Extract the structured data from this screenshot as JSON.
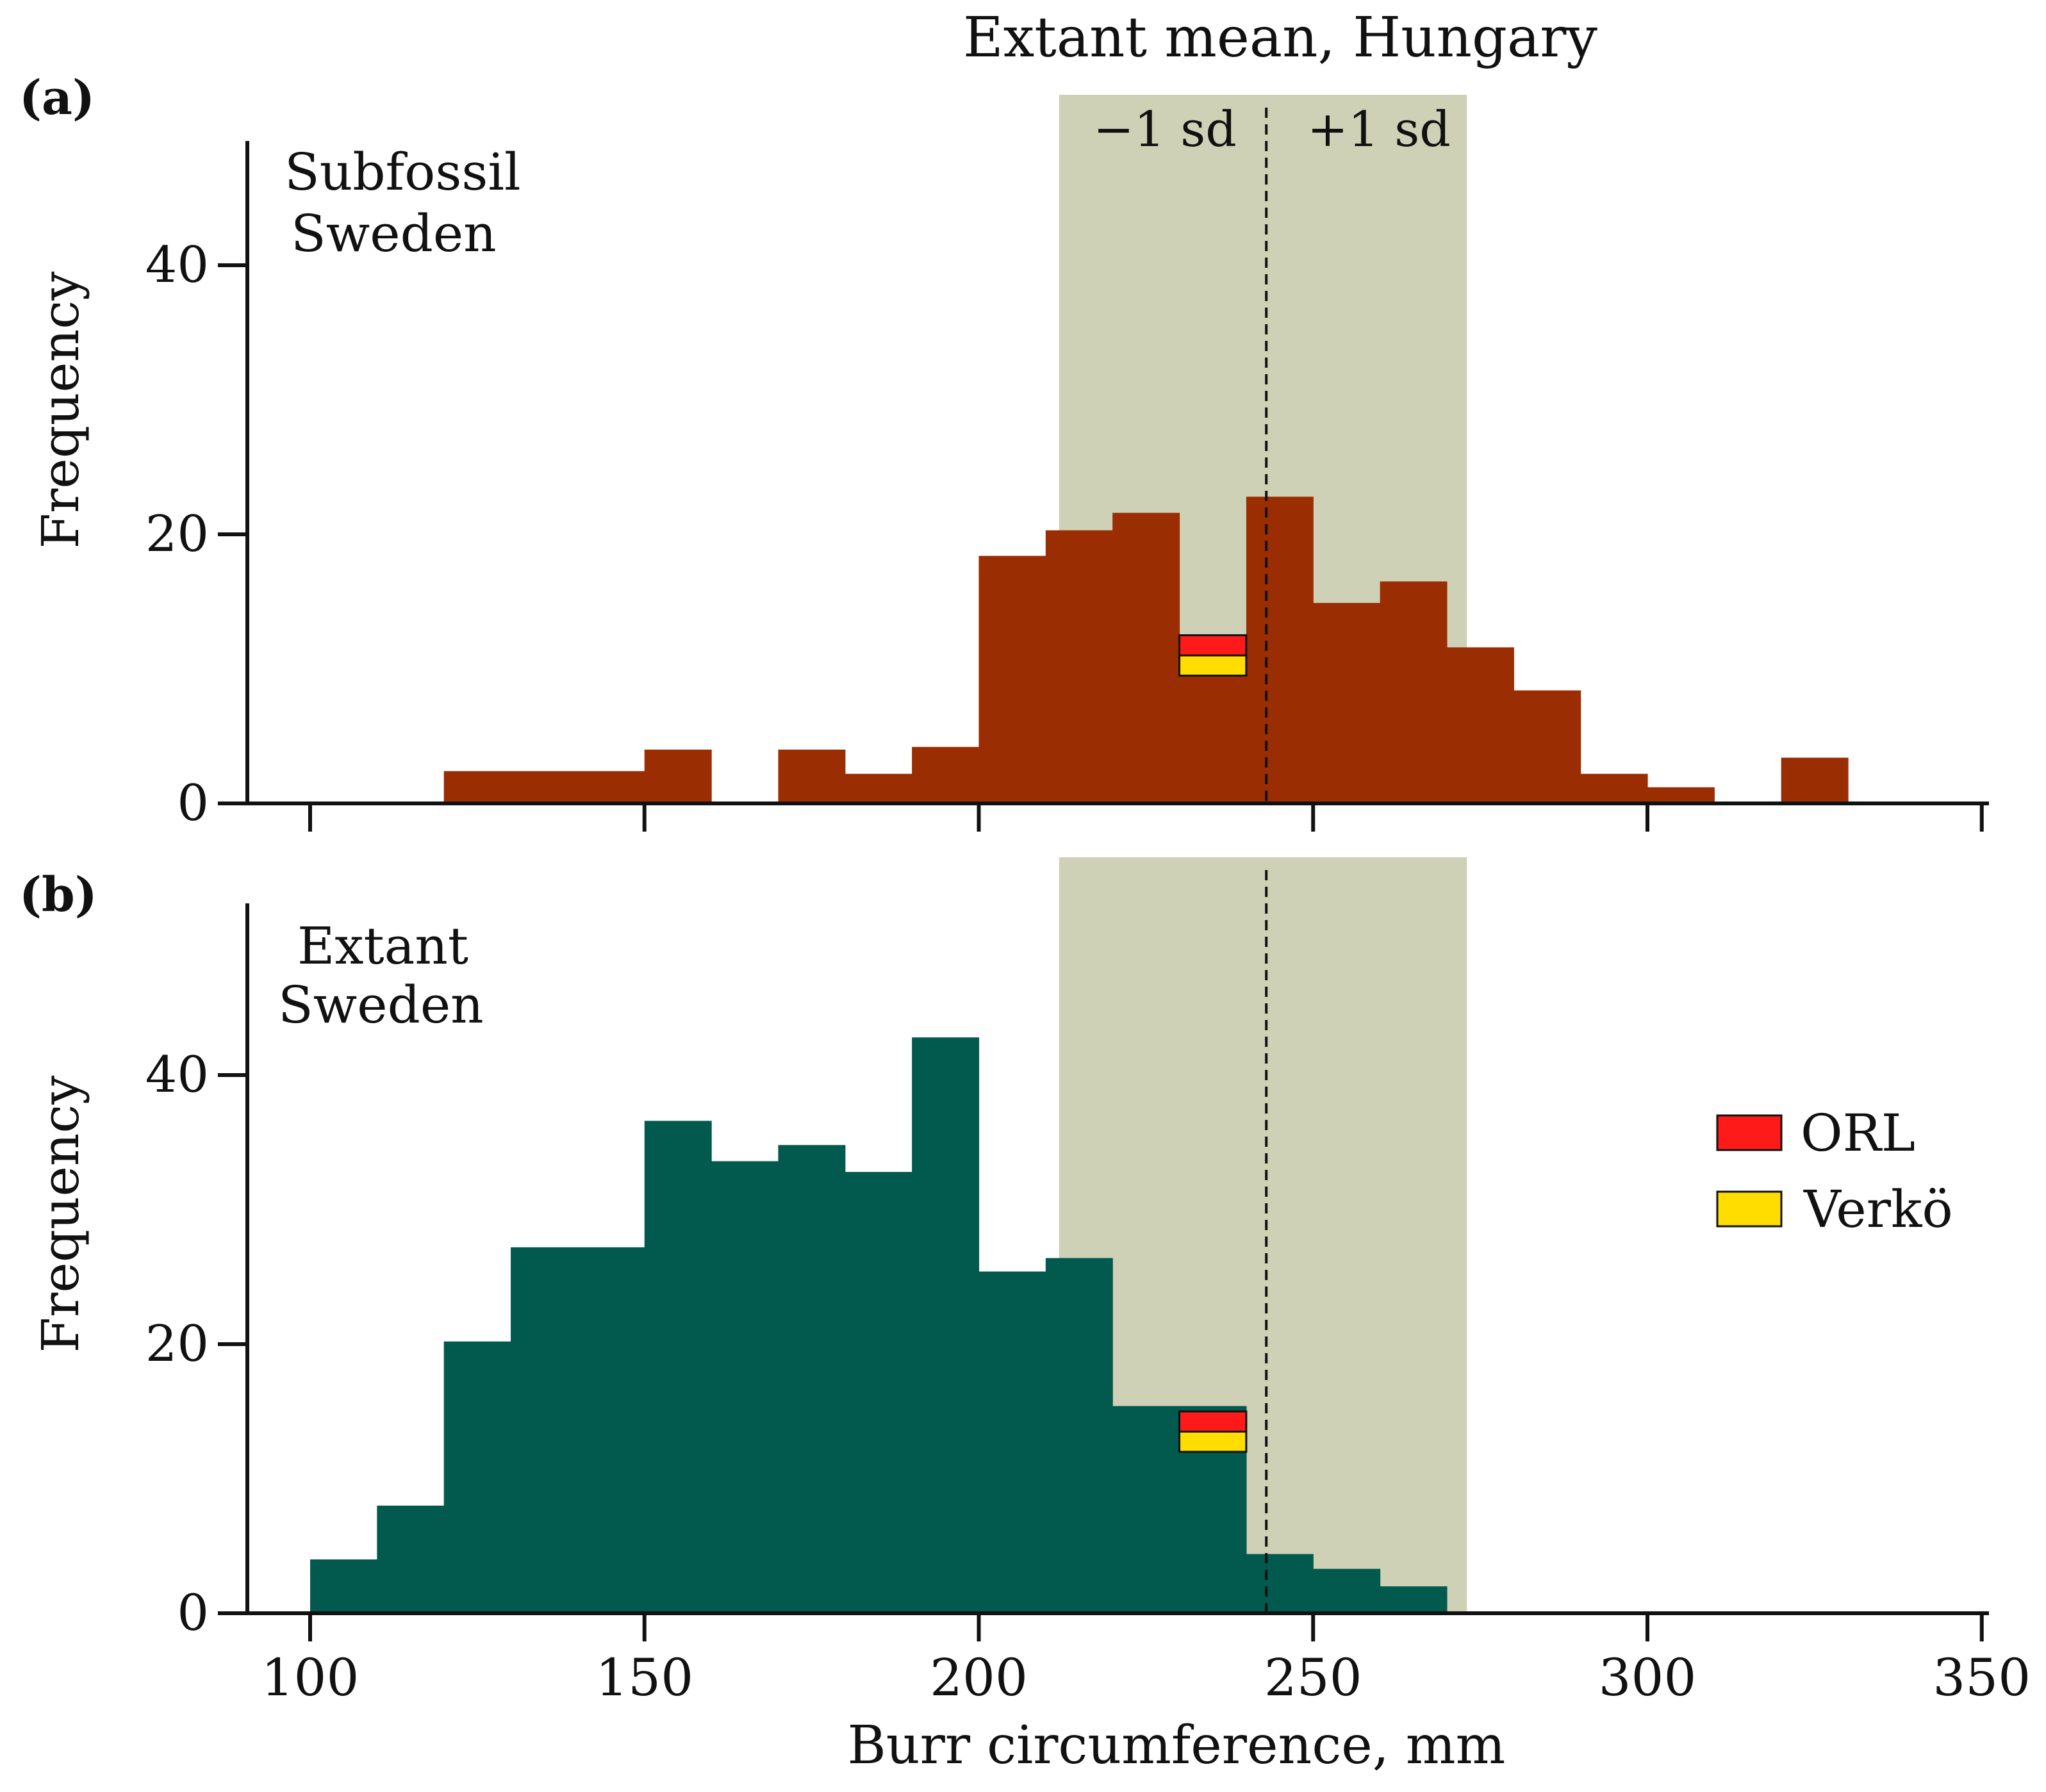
{
  "chart_data": {
    "type": "bar",
    "title": "Extant mean, Hungary",
    "xlabel": "Burr circumference, mm",
    "ylabel": "Frequency",
    "xlim": [
      90,
      350
    ],
    "ylim": [
      0,
      50
    ],
    "x_ticks": [
      "100",
      "150",
      "200",
      "250",
      "300",
      "350"
    ],
    "y_ticks": [
      "0",
      "20",
      "40"
    ],
    "bin_width": 10,
    "mean_line": 243,
    "sd_band": [
      212,
      273
    ],
    "sd_labels": {
      "minus": "−1 sd",
      "plus": "+1 sd"
    },
    "colors": {
      "subfossil": "#9a2e02",
      "extant": "#025a4e",
      "band": "#cfd1b6",
      "orl": "#ff1a1a",
      "verko": "#ffdd00"
    },
    "panels": [
      {
        "label": "(a)",
        "name_line1": "Subfossil",
        "name_line2": "Sweden",
        "series": "subfossil",
        "markers": {
          "x_range": [
            230,
            240
          ],
          "orl": [
            11,
            12.5
          ],
          "verko": [
            9.5,
            11
          ]
        },
        "bins": [
          {
            "x0": 120,
            "x1": 150,
            "y": 2.4
          },
          {
            "x0": 150,
            "x1": 160,
            "y": 4.0
          },
          {
            "x0": 170,
            "x1": 180,
            "y": 4.0
          },
          {
            "x0": 180,
            "x1": 190,
            "y": 2.2
          },
          {
            "x0": 190,
            "x1": 200,
            "y": 4.2
          },
          {
            "x0": 200,
            "x1": 210,
            "y": 18.4
          },
          {
            "x0": 210,
            "x1": 220,
            "y": 20.3
          },
          {
            "x0": 220,
            "x1": 230,
            "y": 21.6
          },
          {
            "x0": 230,
            "x1": 240,
            "y": 12.5
          },
          {
            "x0": 240,
            "x1": 250,
            "y": 22.8
          },
          {
            "x0": 250,
            "x1": 260,
            "y": 14.9
          },
          {
            "x0": 260,
            "x1": 270,
            "y": 16.5
          },
          {
            "x0": 270,
            "x1": 280,
            "y": 11.6
          },
          {
            "x0": 280,
            "x1": 290,
            "y": 8.4
          },
          {
            "x0": 290,
            "x1": 300,
            "y": 2.2
          },
          {
            "x0": 300,
            "x1": 310,
            "y": 1.2
          },
          {
            "x0": 320,
            "x1": 330,
            "y": 3.4
          }
        ]
      },
      {
        "label": "(b)",
        "name_line1": "Extant",
        "name_line2": "Sweden",
        "series": "extant",
        "markers": {
          "x_range": [
            230,
            240
          ],
          "orl": [
            13.5,
            15
          ],
          "verko": [
            12,
            13.5
          ]
        },
        "bins": [
          {
            "x0": 100,
            "x1": 110,
            "y": 4.0
          },
          {
            "x0": 110,
            "x1": 120,
            "y": 8.0
          },
          {
            "x0": 120,
            "x1": 130,
            "y": 20.2
          },
          {
            "x0": 130,
            "x1": 150,
            "y": 27.2
          },
          {
            "x0": 150,
            "x1": 160,
            "y": 36.6
          },
          {
            "x0": 160,
            "x1": 170,
            "y": 33.6
          },
          {
            "x0": 170,
            "x1": 180,
            "y": 34.8
          },
          {
            "x0": 180,
            "x1": 190,
            "y": 32.8
          },
          {
            "x0": 190,
            "x1": 200,
            "y": 42.8
          },
          {
            "x0": 200,
            "x1": 210,
            "y": 25.4
          },
          {
            "x0": 210,
            "x1": 220,
            "y": 26.4
          },
          {
            "x0": 220,
            "x1": 240,
            "y": 15.4
          },
          {
            "x0": 240,
            "x1": 250,
            "y": 4.4
          },
          {
            "x0": 250,
            "x1": 260,
            "y": 3.3
          },
          {
            "x0": 260,
            "x1": 270,
            "y": 2.0
          }
        ]
      }
    ],
    "legend": {
      "position": "right",
      "entries": [
        {
          "label": "ORL",
          "color_key": "orl"
        },
        {
          "label": "Verkö",
          "color_key": "verko"
        }
      ]
    }
  }
}
